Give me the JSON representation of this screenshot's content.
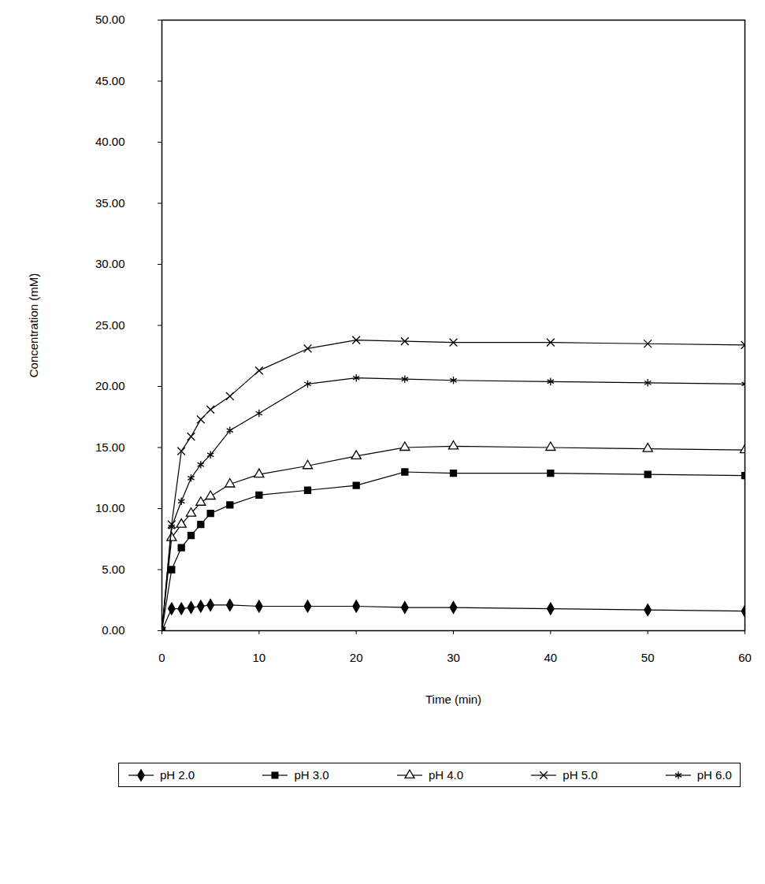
{
  "chart_data": {
    "type": "line",
    "x_label": "Time (min)",
    "y_label": "Concentration (mM)",
    "x": [
      0,
      1,
      2,
      3,
      4,
      5,
      7,
      10,
      15,
      20,
      25,
      30,
      40,
      50,
      60
    ],
    "series": [
      {
        "name": "pH 2.0",
        "color": "#000000",
        "marker": "diamond",
        "values": [
          0,
          1.8,
          1.8,
          1.9,
          2.0,
          2.1,
          2.1,
          2.0,
          2.0,
          2.0,
          1.9,
          1.9,
          1.8,
          1.7,
          1.6
        ]
      },
      {
        "name": "pH 3.0",
        "color": "#000000",
        "marker": "square",
        "values": [
          0,
          5.0,
          6.8,
          7.8,
          8.7,
          9.6,
          10.3,
          11.1,
          11.5,
          11.9,
          13.0,
          12.9,
          12.9,
          12.8,
          12.7
        ]
      },
      {
        "name": "pH 4.0",
        "color": "#000000",
        "marker": "triangle",
        "values": [
          0,
          7.6,
          8.7,
          9.6,
          10.5,
          11.0,
          12.0,
          12.8,
          13.5,
          14.3,
          15.0,
          15.1,
          15.0,
          14.9,
          14.8
        ]
      },
      {
        "name": "pH 5.0",
        "color": "#000000",
        "marker": "times",
        "values": [
          0,
          8.7,
          14.7,
          15.9,
          17.3,
          18.1,
          19.2,
          21.3,
          23.1,
          23.8,
          23.7,
          23.6,
          23.6,
          23.5,
          23.4
        ]
      },
      {
        "name": "pH 6.0",
        "color": "#000000",
        "marker": "asterisk",
        "values": [
          0,
          8.5,
          10.6,
          12.5,
          13.6,
          14.4,
          16.4,
          17.8,
          20.2,
          20.7,
          20.6,
          20.5,
          20.4,
          20.3,
          20.2
        ]
      }
    ],
    "xlim": [
      0,
      60
    ],
    "xticks": [
      0,
      10,
      20,
      30,
      40,
      50,
      60
    ],
    "ylim": [
      0,
      50
    ],
    "yticks": [
      {
        "value": 0,
        "label": "0.00"
      },
      {
        "value": 5,
        "label": "5.00"
      },
      {
        "value": 10,
        "label": "10.00"
      },
      {
        "value": 15,
        "label": "15.00"
      },
      {
        "value": 20,
        "label": "20.00"
      },
      {
        "value": 25,
        "label": "25.00"
      },
      {
        "value": 30,
        "label": "30.00"
      },
      {
        "value": 35,
        "label": "35.00"
      },
      {
        "value": 40,
        "label": "40.00"
      },
      {
        "value": 45,
        "label": "45.00"
      },
      {
        "value": 50,
        "label": "50.00"
      }
    ],
    "grid": false,
    "legend": "bottom"
  }
}
